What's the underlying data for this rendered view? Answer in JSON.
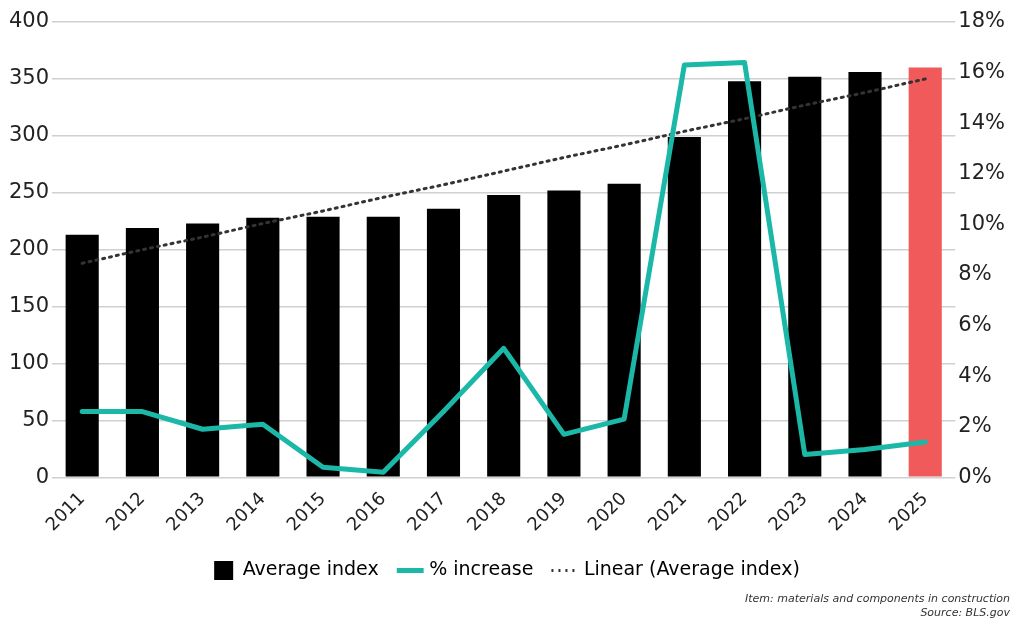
{
  "chart_data": {
    "type": "bar",
    "categories": [
      "2011",
      "2012",
      "2013",
      "2014",
      "2015",
      "2016",
      "2017",
      "2018",
      "2019",
      "2020",
      "2021",
      "2022",
      "2023",
      "2024",
      "2025"
    ],
    "series": [
      {
        "name": "Average index",
        "colors": [
          "#000000",
          "#000000",
          "#000000",
          "#000000",
          "#000000",
          "#000000",
          "#000000",
          "#000000",
          "#000000",
          "#000000",
          "#000000",
          "#000000",
          "#000000",
          "#000000",
          "#f05a5a"
        ],
        "values": [
          213,
          219,
          223,
          228,
          229,
          229,
          236,
          248,
          252,
          258,
          299,
          348,
          352,
          356,
          360
        ]
      },
      {
        "name": "% increase",
        "type": "line",
        "axis": "y2",
        "color": "#1bb8a8",
        "values": [
          2.6,
          2.6,
          1.9,
          2.1,
          0.4,
          0.2,
          2.6,
          5.1,
          1.7,
          2.3,
          16.3,
          16.4,
          0.9,
          1.1,
          1.4
        ]
      },
      {
        "name": "Linear (Average index)",
        "type": "line",
        "color": "#333333",
        "line_style": "dotted",
        "values": [
          188,
          200,
          211,
          223,
          234,
          246,
          257,
          269,
          281,
          292,
          304,
          315,
          327,
          338,
          350
        ]
      }
    ],
    "ylim": [
      0,
      400
    ],
    "yticks": [
      0,
      50,
      100,
      150,
      200,
      250,
      300,
      350,
      400
    ],
    "y2lim": [
      0,
      18
    ],
    "y2ticks": [
      {
        "value": 0,
        "label": "0%"
      },
      {
        "value": 2,
        "label": "2%"
      },
      {
        "value": 4,
        "label": "4%"
      },
      {
        "value": 6,
        "label": "6%"
      },
      {
        "value": 8,
        "label": "8%"
      },
      {
        "value": 10,
        "label": "10%"
      },
      {
        "value": 12,
        "label": "12%"
      },
      {
        "value": 14,
        "label": "14%"
      },
      {
        "value": 16,
        "label": "16%"
      },
      {
        "value": 18,
        "label": "18%"
      }
    ],
    "grid": "y",
    "legend": "bottom",
    "marker": "none",
    "annotations": [
      "Item: materials and components in construction",
      "Source: BLS.gov"
    ]
  }
}
